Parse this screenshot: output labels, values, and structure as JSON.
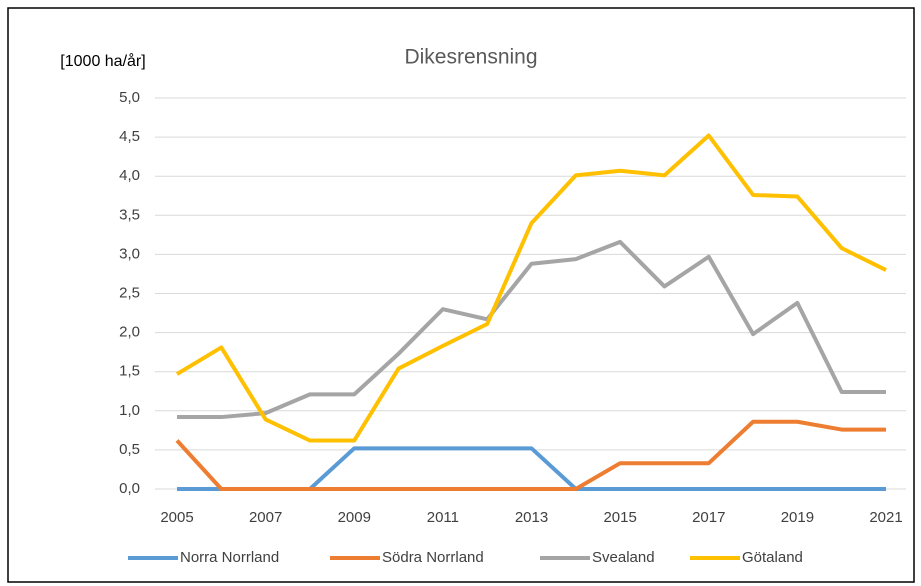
{
  "chart_data": {
    "type": "line",
    "title": "Dikesrensning",
    "y_label": "[1000 ha/år]",
    "x": [
      2005,
      2006,
      2007,
      2008,
      2009,
      2010,
      2011,
      2012,
      2013,
      2014,
      2015,
      2016,
      2017,
      2018,
      2019,
      2020,
      2021
    ],
    "xlim": [
      2005,
      2021
    ],
    "xticks": [
      2005,
      2007,
      2009,
      2011,
      2013,
      2015,
      2017,
      2019,
      2021
    ],
    "ylim": [
      0,
      5
    ],
    "yticks": [
      {
        "value": 0,
        "label": "0,0"
      },
      {
        "value": 0.5,
        "label": "0,5"
      },
      {
        "value": 1,
        "label": "1,0"
      },
      {
        "value": 1.5,
        "label": "1,5"
      },
      {
        "value": 2,
        "label": "2,0"
      },
      {
        "value": 2.5,
        "label": "2,5"
      },
      {
        "value": 3,
        "label": "3,0"
      },
      {
        "value": 3.5,
        "label": "3,5"
      },
      {
        "value": 4,
        "label": "4,0"
      },
      {
        "value": 4.5,
        "label": "4,5"
      },
      {
        "value": 5,
        "label": "5,0"
      }
    ],
    "grid": true,
    "legend": "bottom",
    "series": [
      {
        "name": "Norra Norrland",
        "color": "#5b9bd5",
        "values": [
          0,
          0,
          0,
          0,
          0.52,
          0.52,
          0.52,
          0.52,
          0.52,
          0,
          0,
          0,
          0,
          0,
          0,
          0,
          0
        ]
      },
      {
        "name": "Södra Norrland",
        "color": "#ed7d31",
        "values": [
          0.62,
          0,
          0,
          0,
          0,
          0,
          0,
          0,
          0,
          0,
          0.33,
          0.33,
          0.33,
          0.86,
          0.86,
          0.76,
          0.76
        ]
      },
      {
        "name": "Svealand",
        "color": "#a5a5a5",
        "values": [
          0.92,
          0.92,
          0.97,
          1.21,
          1.21,
          1.73,
          2.3,
          2.17,
          2.88,
          2.94,
          3.16,
          2.59,
          2.97,
          1.98,
          2.38,
          1.24,
          1.24
        ]
      },
      {
        "name": "Götaland",
        "color": "#ffc000",
        "values": [
          1.47,
          1.81,
          0.89,
          0.62,
          0.62,
          1.54,
          1.83,
          2.11,
          3.4,
          4.01,
          4.07,
          4.01,
          4.52,
          3.76,
          3.74,
          3.08,
          2.8
        ]
      }
    ]
  }
}
